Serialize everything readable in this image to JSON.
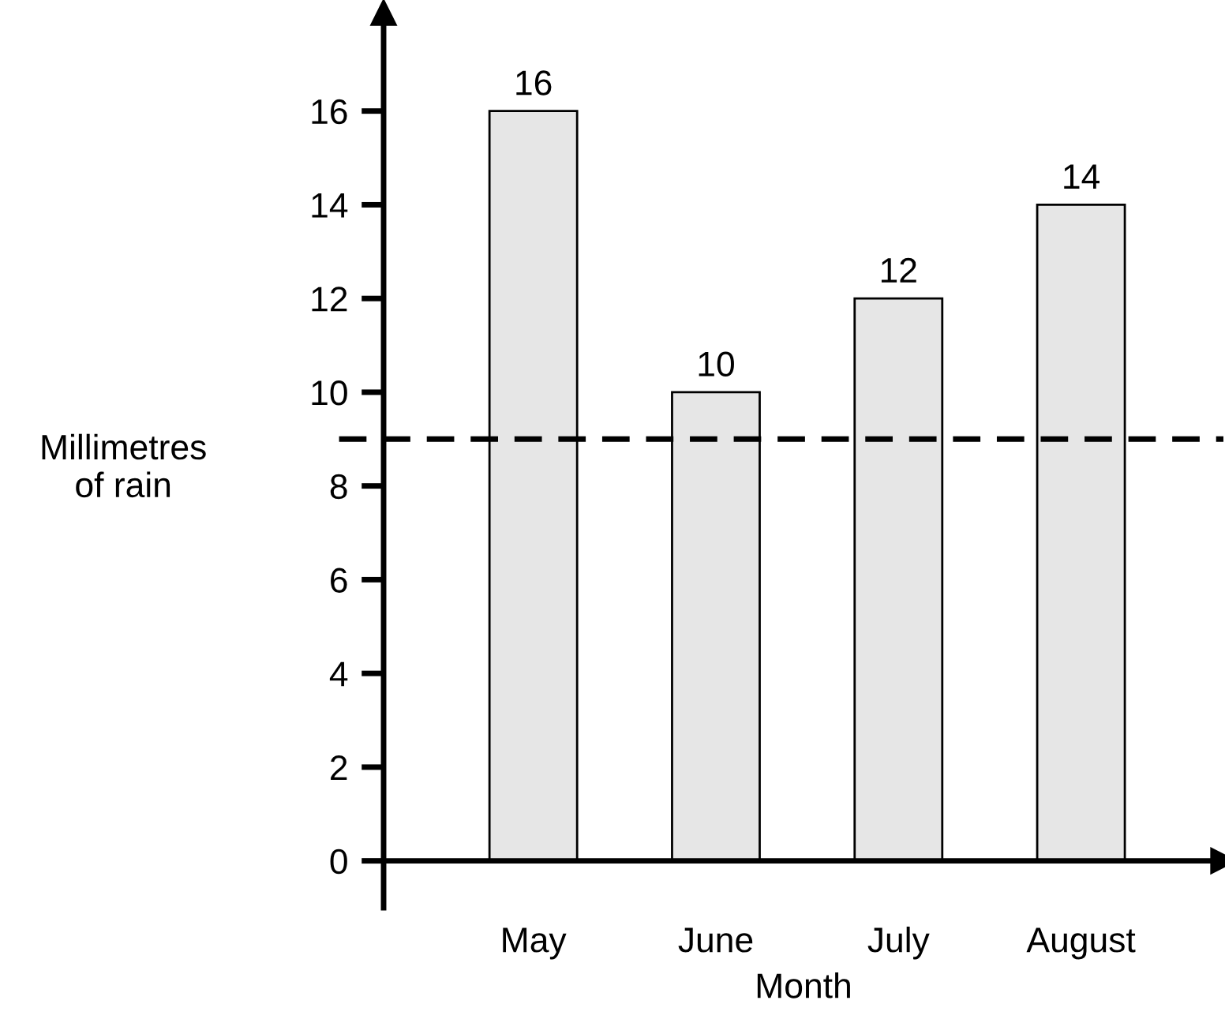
{
  "chart_data": {
    "type": "bar",
    "xlabel": "Month",
    "ylabel": "Millimetres\nof rain",
    "categories": [
      "May",
      "June",
      "July",
      "August"
    ],
    "values": [
      16,
      10,
      12,
      14
    ],
    "color": "#e6e6e6",
    "data_labels": true,
    "ylim": [
      -1,
      18.1
    ],
    "yticks": [
      0,
      2,
      4,
      6,
      8,
      10,
      12,
      14,
      16
    ],
    "grid": false,
    "ref_lines": [
      {
        "axis": "y",
        "value": 9,
        "line_style": "dashed",
        "color": "#000000"
      }
    ]
  }
}
